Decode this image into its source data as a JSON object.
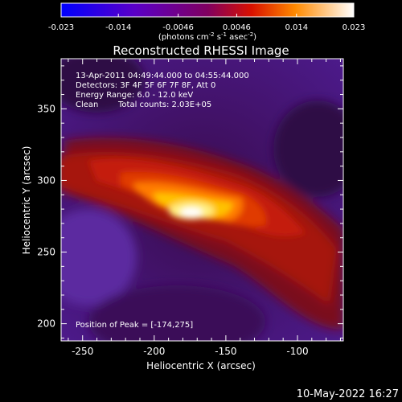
{
  "chart_data": {
    "type": "heatmap",
    "title": "Reconstructed RHESSI Image",
    "xlabel": "Heliocentric X (arcsec)",
    "ylabel": "Heliocentric Y (arcsec)",
    "xlim": [
      -265,
      -68
    ],
    "ylim": [
      188,
      385
    ],
    "x_ticks": [
      -250,
      -200,
      -150,
      -100
    ],
    "y_ticks": [
      200,
      250,
      300,
      350
    ],
    "colorbar": {
      "ticks": [
        "-0.023",
        "-0.014",
        "-0.0046",
        "0.0046",
        "0.014",
        "0.023"
      ],
      "tick_values": [
        -0.023,
        -0.014,
        -0.0046,
        0.0046,
        0.014,
        0.023
      ],
      "range": [
        -0.023,
        0.023
      ],
      "label_main": "(photons cm",
      "label_exp1": "-2",
      "label_mid": " s",
      "label_exp2": "-1",
      "label_end": " asec",
      "label_exp3": "-2",
      "label_close": ")"
    },
    "annotations": {
      "time": "13-Apr-2011 04:49:44.000 to 04:55:44.000",
      "detectors": "Detectors: 3F 4F 5F 6F 7F 8F, Att 0",
      "energy": "Energy Range: 6.0 - 12.0 keV",
      "method": "Clean",
      "counts": "Total counts: 2.03E+05",
      "peak": "Position of Peak = [-174,275]"
    },
    "peak": [
      -174,
      275
    ],
    "timestamp": "10-May-2022 16:27"
  }
}
